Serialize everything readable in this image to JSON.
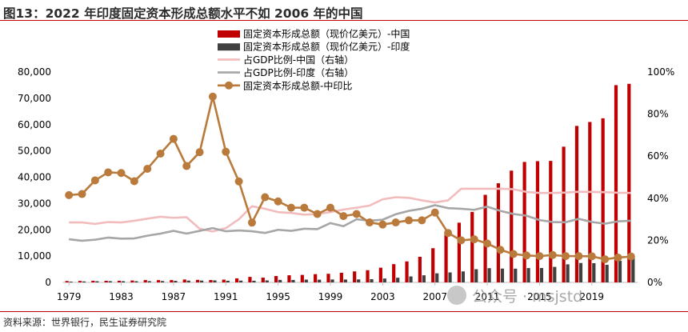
{
  "header": {
    "title": "图13：2022 年印度固定资本形成总额水平不如 2006 年的中国"
  },
  "footer": {
    "source": "资料来源：世界银行，民生证券研究院"
  },
  "watermark": {
    "text": "公众号 · msjstd"
  },
  "colors": {
    "rule": "#c00000",
    "china_bar": "#c00000",
    "india_bar": "#404040",
    "china_share": "#f2bcbc",
    "india_share": "#a6a6a6",
    "ratio": "#b97a3c"
  },
  "chart_data": {
    "type": "bar+line",
    "x": [
      1979,
      1980,
      1981,
      1982,
      1983,
      1984,
      1985,
      1986,
      1987,
      1988,
      1989,
      1990,
      1991,
      1992,
      1993,
      1994,
      1995,
      1996,
      1997,
      1998,
      1999,
      2000,
      2001,
      2002,
      2003,
      2004,
      2005,
      2006,
      2007,
      2008,
      2009,
      2010,
      2011,
      2012,
      2013,
      2014,
      2015,
      2016,
      2017,
      2018,
      2019,
      2020,
      2021,
      2022
    ],
    "x_tick_labels": [
      "1979",
      "1983",
      "1987",
      "1991",
      "1995",
      "1999",
      "2003",
      "2007",
      "2011",
      "2015",
      "2019"
    ],
    "y_left": {
      "min": 0,
      "max": 80000,
      "ticks": [
        "0",
        "10,000",
        "20,000",
        "30,000",
        "40,000",
        "50,000",
        "60,000",
        "70,000",
        "80,000"
      ]
    },
    "y_right": {
      "min": 0,
      "max": 100,
      "ticks": [
        "0%",
        "20%",
        "40%",
        "60%",
        "80%",
        "100%"
      ]
    },
    "series": [
      {
        "name": "固定资本形成总额（现价亿美元）-中国",
        "type": "bar",
        "axis": "left",
        "values": [
          530,
          560,
          620,
          610,
          640,
          720,
          880,
          860,
          880,
          1100,
          970,
          900,
          1060,
          1540,
          2100,
          1820,
          2420,
          2710,
          2850,
          3140,
          3280,
          3670,
          4180,
          4640,
          5590,
          6940,
          7980,
          9740,
          13000,
          18200,
          22700,
          26800,
          33300,
          37700,
          42500,
          45800,
          46100,
          46200,
          51600,
          59500,
          61000,
          62400,
          75000,
          75500
        ]
      },
      {
        "name": "固定资本形成总额（现价亿美元）-印度",
        "type": "bar",
        "axis": "left",
        "values": [
          290,
          380,
          440,
          490,
          460,
          450,
          490,
          520,
          600,
          680,
          700,
          760,
          640,
          680,
          640,
          760,
          950,
          930,
          1060,
          1040,
          1120,
          1100,
          1140,
          1220,
          1470,
          1780,
          2270,
          2700,
          3450,
          3790,
          4180,
          5020,
          5410,
          5260,
          5230,
          5450,
          5470,
          5900,
          6870,
          7380,
          7310,
          6700,
          8200,
          9200
        ]
      },
      {
        "name": "占GDP比例-中国（右轴）",
        "type": "line",
        "axis": "right",
        "values": [
          28.5,
          28.5,
          27.8,
          28.7,
          28.5,
          29.3,
          30.3,
          31.2,
          30.7,
          31.0,
          25.5,
          24.2,
          25.8,
          30.0,
          36.2,
          35.0,
          33.4,
          33.0,
          32.2,
          32.5,
          33.4,
          34.6,
          35.5,
          36.5,
          39.5,
          40.5,
          40.2,
          39.0,
          38.0,
          39.0,
          44.5,
          44.5,
          44.5,
          44.5,
          44.3,
          43.0,
          42.5,
          42.5,
          42.7,
          43.1,
          43.0,
          42.9,
          42.6,
          42.5
        ]
      },
      {
        "name": "占GDP比例-印度（右轴）",
        "type": "line",
        "axis": "right",
        "values": [
          20.5,
          19.8,
          20.3,
          21.3,
          20.8,
          20.9,
          22.2,
          23.2,
          24.5,
          23.2,
          24.5,
          25.8,
          24.3,
          24.7,
          24.3,
          23.5,
          25.0,
          24.5,
          25.5,
          25.3,
          28.2,
          26.7,
          30.0,
          29.3,
          29.8,
          32.4,
          34.0,
          35.0,
          36.7,
          35.3,
          35.0,
          34.5,
          36.0,
          34.0,
          32.5,
          31.7,
          29.6,
          28.7,
          28.6,
          30.2,
          28.7,
          27.9,
          29.0,
          29.3
        ]
      },
      {
        "name": "固定资本形成总额-中印比",
        "type": "line",
        "axis": "right",
        "values": [
          41.5,
          42.0,
          48.5,
          52.3,
          52.0,
          48.1,
          54.0,
          61.2,
          68.2,
          55.3,
          61.9,
          88.3,
          62.1,
          48.0,
          28.4,
          40.5,
          38.5,
          35.5,
          35.5,
          32.5,
          35.5,
          31.5,
          32.5,
          28.5,
          27.5,
          28.5,
          29.5,
          29.5,
          33.2,
          23.5,
          20.0,
          20.5,
          18.5,
          15.5,
          13.5,
          12.8,
          12.5,
          13.0,
          12.5,
          12.5,
          12.4,
          11.0,
          11.8,
          12.3
        ]
      }
    ]
  }
}
